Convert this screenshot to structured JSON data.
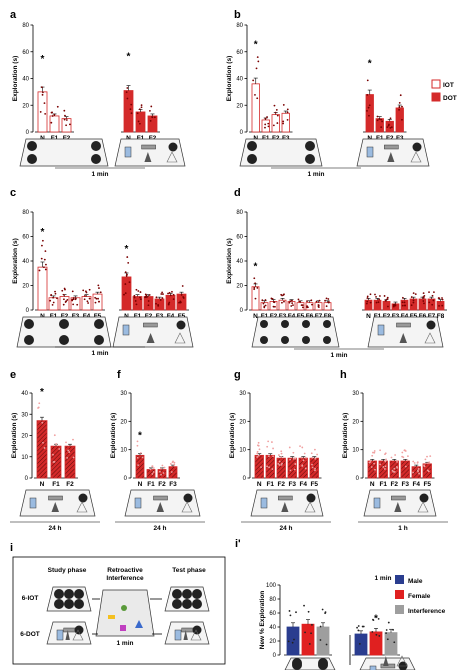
{
  "colors": {
    "iot": "#d42a2a",
    "dot": "#d42a2a",
    "male": "#2a3d8f",
    "female": "#e02020",
    "interference": "#9e9e9e",
    "pink": "#f0a0a0",
    "dark": "#222222"
  },
  "icons": [
    "object-circle-icon",
    "bottle-icon",
    "cup-icon",
    "flask-icon",
    "cone-icon",
    "star-icon",
    "pyramid-icon"
  ],
  "legend_b": [
    {
      "label": "IOT",
      "style": "open"
    },
    {
      "label": "DOT",
      "style": "filled"
    }
  ],
  "legend_i": [
    {
      "label": "Male",
      "color": "#2a3d8f"
    },
    {
      "label": "Female",
      "color": "#e02020"
    },
    {
      "label": "Interference",
      "color": "#9e9e9e"
    }
  ],
  "panel_i": {
    "label": "i",
    "study": "Study phase",
    "retro1": "Retroactive",
    "retro2": "Interference",
    "test": "Test phase",
    "row1": "6-IOT",
    "row2": "6-DOT",
    "time": "1 min"
  },
  "chart_data": [
    {
      "id": "a",
      "type": "bar",
      "title": "",
      "ylabel": "Exploration (s)",
      "ylim": [
        0,
        80
      ],
      "yticks": [
        0,
        20,
        40,
        60,
        80
      ],
      "caption": "1 min",
      "star_index": [
        0
      ],
      "groups": [
        {
          "style": "open",
          "categories": [
            "N",
            "F1",
            "F2"
          ],
          "values": [
            30,
            12,
            10
          ]
        },
        {
          "style": "filled",
          "categories": [
            "N",
            "F1",
            "F2"
          ],
          "values": [
            31,
            15,
            12
          ],
          "star_index": [
            0
          ]
        }
      ]
    },
    {
      "id": "b",
      "type": "bar",
      "title": "",
      "ylabel": "Exploration (s)",
      "ylim": [
        0,
        80
      ],
      "yticks": [
        0,
        20,
        40,
        60,
        80
      ],
      "caption": "1 min",
      "star_index": [
        0
      ],
      "groups": [
        {
          "style": "open",
          "categories": [
            "N",
            "F1",
            "F2",
            "F3"
          ],
          "values": [
            36,
            9,
            13,
            14
          ]
        },
        {
          "style": "filled",
          "categories": [
            "N",
            "F1",
            "F2",
            "F3"
          ],
          "values": [
            28,
            10,
            8,
            18
          ],
          "star_index": [
            0
          ]
        }
      ]
    },
    {
      "id": "c",
      "type": "bar",
      "title": "",
      "ylabel": "Exploration (s)",
      "ylim": [
        0,
        80
      ],
      "yticks": [
        0,
        20,
        40,
        60,
        80
      ],
      "caption": "1 min",
      "star_index": [
        0
      ],
      "groups": [
        {
          "style": "open",
          "categories": [
            "N",
            "F1",
            "F2",
            "F3",
            "F4",
            "F5"
          ],
          "values": [
            35,
            10,
            11,
            10,
            11,
            13
          ]
        },
        {
          "style": "filled",
          "categories": [
            "N",
            "F1",
            "F2",
            "F3",
            "F4",
            "F5"
          ],
          "values": [
            27,
            11,
            11,
            9,
            12,
            13
          ],
          "star_index": [
            0
          ]
        }
      ]
    },
    {
      "id": "d",
      "type": "bar",
      "title": "",
      "ylabel": "Exploration (s)",
      "ylim": [
        0,
        80
      ],
      "yticks": [
        0,
        20,
        40,
        60,
        80
      ],
      "caption": "1 min",
      "star_index": [
        0
      ],
      "groups": [
        {
          "style": "open",
          "categories": [
            "N",
            "F1",
            "F2",
            "F3",
            "F4",
            "F5",
            "F6",
            "F7",
            "F8"
          ],
          "values": [
            19,
            6,
            7,
            8,
            7,
            6,
            6,
            6,
            6
          ]
        },
        {
          "style": "filled",
          "categories": [
            "N",
            "F1",
            "F2",
            "F3",
            "F4",
            "F5",
            "F6",
            "F7",
            "F8"
          ],
          "values": [
            8,
            8,
            7,
            5,
            8,
            9,
            9,
            9,
            7
          ]
        }
      ]
    },
    {
      "id": "e",
      "type": "bar",
      "title": "",
      "ylabel": "Exploration (s)",
      "ylim": [
        0,
        40
      ],
      "yticks": [
        0,
        10,
        20,
        30,
        40
      ],
      "caption": "24 h",
      "star_index": [
        0
      ],
      "groups": [
        {
          "style": "hatched",
          "categories": [
            "N",
            "F1",
            "F2"
          ],
          "values": [
            27,
            15,
            15
          ]
        }
      ]
    },
    {
      "id": "f",
      "type": "bar",
      "title": "",
      "ylabel": "Exploration (s)",
      "ylim": [
        0,
        30
      ],
      "yticks": [
        0,
        10,
        20,
        30
      ],
      "caption": "24 h",
      "star_index": [
        0
      ],
      "groups": [
        {
          "style": "hatched",
          "categories": [
            "N",
            "F1",
            "F2",
            "F3"
          ],
          "values": [
            8,
            3,
            3,
            4
          ]
        }
      ]
    },
    {
      "id": "g",
      "type": "bar",
      "title": "",
      "ylabel": "Exploration (s)",
      "ylim": [
        0,
        30
      ],
      "yticks": [
        0,
        10,
        20,
        30
      ],
      "caption": "24 h",
      "groups": [
        {
          "style": "hatched",
          "categories": [
            "N",
            "F1",
            "F2",
            "F3",
            "F4",
            "F5"
          ],
          "values": [
            8,
            8,
            7,
            7,
            7,
            7
          ]
        }
      ]
    },
    {
      "id": "h",
      "type": "bar",
      "title": "",
      "ylabel": "Exploration (s)",
      "ylim": [
        0,
        30
      ],
      "yticks": [
        0,
        10,
        20,
        30
      ],
      "caption": "1 h",
      "groups": [
        {
          "style": "hatched",
          "categories": [
            "N",
            "F1",
            "F2",
            "F3",
            "F4",
            "F5"
          ],
          "values": [
            6,
            6,
            6,
            6,
            4,
            5
          ]
        }
      ]
    },
    {
      "id": "i'",
      "type": "bar",
      "title": "1 min",
      "ylabel": "New % Exploration",
      "ylim": [
        0,
        100
      ],
      "yticks": [
        0,
        20,
        40,
        60,
        80,
        100
      ],
      "groups": [
        {
          "style": "triple",
          "categories": [
            "Male",
            "Female",
            "Interference"
          ],
          "values": [
            40,
            44,
            40
          ]
        },
        {
          "style": "triple",
          "categories": [
            "Male",
            "Female",
            "Interference"
          ],
          "values": [
            30,
            33,
            32
          ],
          "star_on_second": true
        }
      ],
      "interference_values": [
        36,
        43,
        20
      ]
    }
  ]
}
